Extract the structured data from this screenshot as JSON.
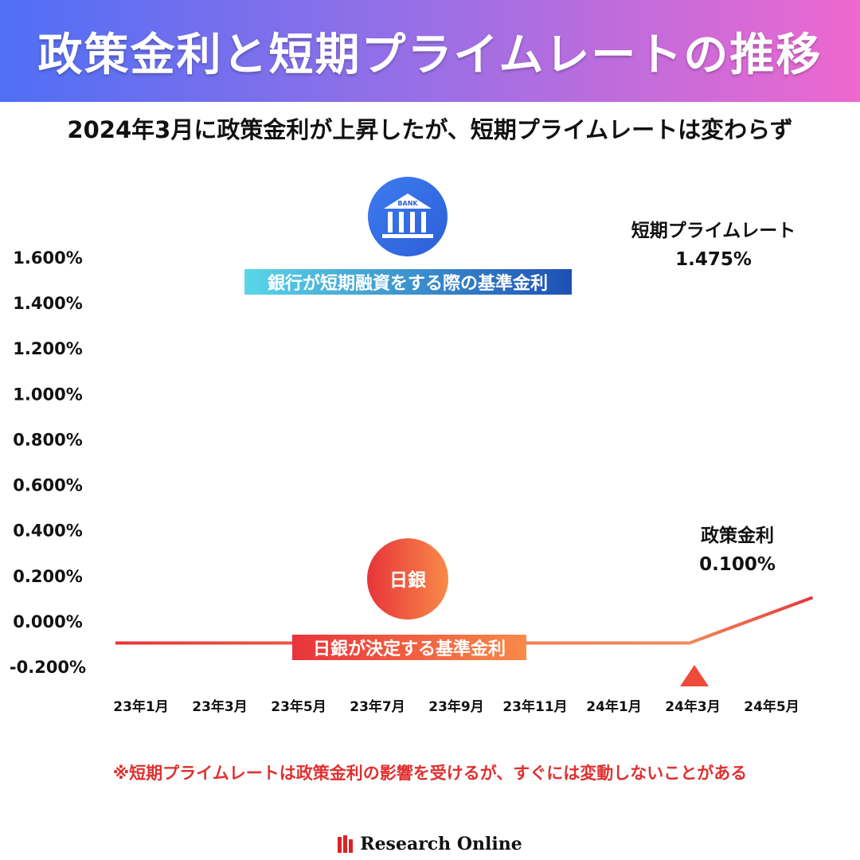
{
  "header": {
    "title": "政策金利と短期プライムレートの推移"
  },
  "subtitle": "2024年3月に政策金利が上昇したが、短期プライムレートは変わらず",
  "note": "※短期プライムレートは政策金利の影響を受けるが、すぐには変動しないことがある",
  "brand": {
    "name": "Research Online",
    "accent": "#d9252a"
  },
  "chart_data": {
    "type": "line",
    "x_ticks": [
      "23年1月",
      "23年3月",
      "23年5月",
      "23年7月",
      "23年9月",
      "23年11月",
      "24年1月",
      "24年3月",
      "24年5月"
    ],
    "y_ticks": [
      "1.600%",
      "1.400%",
      "1.200%",
      "1.000%",
      "0.800%",
      "0.600%",
      "0.400%",
      "0.200%",
      "0.000%",
      "-0.200%"
    ],
    "ylim": [
      -0.2,
      1.6
    ],
    "grid": false,
    "x": [
      "2023-01",
      "2023-03",
      "2023-05",
      "2023-07",
      "2023-09",
      "2023-11",
      "2024-01",
      "2024-03",
      "2024-06"
    ],
    "series": [
      {
        "name": "短期プライムレート",
        "value_label": "1.475%",
        "band_label": "銀行が短期融資をする際の基準金利",
        "icon": "bank-icon",
        "icon_text": "BANK",
        "color_start": "#5ad6e8",
        "color_end": "#1e50b4",
        "values": [
          1.475,
          1.475,
          1.475,
          1.475,
          1.475,
          1.475,
          1.475,
          1.475,
          1.475
        ]
      },
      {
        "name": "政策金利",
        "value_label": "0.100%",
        "band_label": "日銀が決定する基準金利",
        "icon": "boj-circle-icon",
        "icon_text": "日銀",
        "color_start": "#e8343a",
        "color_end": "#f88a48",
        "values": [
          -0.1,
          -0.1,
          -0.1,
          -0.1,
          -0.1,
          -0.1,
          -0.1,
          -0.1,
          0.1
        ]
      }
    ],
    "annotations": [
      {
        "type": "triangle-marker",
        "x": "2024-03",
        "color": "#ef4b3a"
      }
    ]
  }
}
